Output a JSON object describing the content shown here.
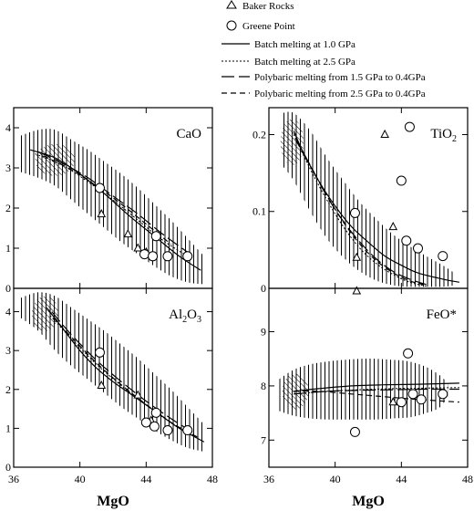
{
  "legend": {
    "placement": "top",
    "entries": [
      {
        "label": "Baker Rocks",
        "kind": "triangle"
      },
      {
        "label": "Greene Point",
        "kind": "circle"
      },
      {
        "label": "Batch melting at 1.0 GPa",
        "kind": "solid"
      },
      {
        "label": "Batch melting at 2.5 GPa",
        "kind": "dotted"
      },
      {
        "label": "Polybaric melting from 1.5 GPa to 0.4GPa",
        "kind": "longdash"
      },
      {
        "label": "Polybaric melting from 2.5 GPa to 0.4GPa",
        "kind": "shortdash"
      }
    ]
  },
  "chart_data": [
    {
      "type": "scatter",
      "id": "cao",
      "title": "CaO",
      "title_sub": "",
      "title_post": "",
      "xlim": [
        36,
        48
      ],
      "ylim": [
        0,
        4.5
      ],
      "xticks": [
        36,
        40,
        44,
        48
      ],
      "yticks": [
        0,
        1,
        2,
        3,
        4
      ],
      "xticklabels": false,
      "xlabel": "",
      "series": [
        {
          "kind": "triangle",
          "points": [
            [
              41.3,
              1.85
            ],
            [
              42.9,
              1.35
            ],
            [
              43.5,
              1.0
            ],
            [
              44.0,
              0.9
            ]
          ]
        },
        {
          "kind": "circle",
          "points": [
            [
              41.2,
              2.5
            ],
            [
              43.9,
              0.85
            ],
            [
              44.4,
              0.8
            ],
            [
              44.6,
              1.3
            ],
            [
              45.3,
              0.8
            ],
            [
              46.5,
              0.8
            ]
          ]
        },
        {
          "kind": "solid",
          "points": [
            [
              37.0,
              3.45
            ],
            [
              38.5,
              3.25
            ],
            [
              40.0,
              2.85
            ],
            [
              41.5,
              2.35
            ],
            [
              43.0,
              1.8
            ],
            [
              44.5,
              1.3
            ],
            [
              46.0,
              0.8
            ],
            [
              47.3,
              0.45
            ]
          ]
        },
        {
          "kind": "dotted",
          "points": [
            [
              37.3,
              3.35
            ],
            [
              39.0,
              3.05
            ],
            [
              40.5,
              2.65
            ],
            [
              42.0,
              2.2
            ],
            [
              43.5,
              1.7
            ],
            [
              45.0,
              1.2
            ],
            [
              46.5,
              0.8
            ]
          ]
        },
        {
          "kind": "longdash",
          "points": [
            [
              37.5,
              3.4
            ],
            [
              39.0,
              3.1
            ],
            [
              40.5,
              2.75
            ],
            [
              42.0,
              2.3
            ],
            [
              43.5,
              1.85
            ],
            [
              45.0,
              1.35
            ],
            [
              46.5,
              0.9
            ]
          ]
        },
        {
          "kind": "shortdash",
          "points": [
            [
              37.8,
              3.3
            ],
            [
              39.5,
              2.95
            ],
            [
              41.0,
              2.55
            ],
            [
              42.5,
              2.1
            ],
            [
              44.0,
              1.6
            ],
            [
              45.5,
              1.1
            ]
          ]
        }
      ],
      "band": [
        [
          36.4,
          3.35,
          3.8,
          2.9
        ],
        [
          37.5,
          3.35,
          3.95,
          2.75
        ],
        [
          38.5,
          3.25,
          3.95,
          2.55
        ],
        [
          39.5,
          3.0,
          3.7,
          2.2
        ],
        [
          40.5,
          2.7,
          3.45,
          1.85
        ],
        [
          41.5,
          2.35,
          3.15,
          1.5
        ],
        [
          42.5,
          2.0,
          2.85,
          1.15
        ],
        [
          43.5,
          1.65,
          2.5,
          0.85
        ],
        [
          44.5,
          1.3,
          2.1,
          0.55
        ],
        [
          45.5,
          0.95,
          1.7,
          0.3
        ],
        [
          46.5,
          0.65,
          1.25,
          0.15
        ],
        [
          47.5,
          0.45,
          0.8,
          0.1
        ]
      ],
      "cross": {
        "cx": 38.5,
        "cy": 3.2,
        "rx": 1.2,
        "ry": 0.4
      }
    },
    {
      "type": "scatter",
      "id": "tio2",
      "title": "TiO",
      "title_sub": "2",
      "title_post": "",
      "xlim": [
        36,
        48
      ],
      "ylim": [
        0,
        0.235
      ],
      "xticks": [
        36,
        40,
        44,
        48
      ],
      "yticks": [
        0,
        0.1,
        0.2
      ],
      "xticklabels": false,
      "xlabel": "",
      "series": [
        {
          "kind": "triangle",
          "points": [
            [
              43.0,
              0.2
            ],
            [
              43.5,
              0.08
            ],
            [
              41.3,
              0.04
            ]
          ]
        },
        {
          "kind": "circle",
          "points": [
            [
              44.5,
              0.21
            ],
            [
              44.0,
              0.14
            ],
            [
              41.2,
              0.098
            ],
            [
              44.3,
              0.062
            ],
            [
              45.0,
              0.052
            ],
            [
              46.5,
              0.042
            ]
          ]
        },
        {
          "kind": "solid",
          "points": [
            [
              37.5,
              0.205
            ],
            [
              38.0,
              0.18
            ],
            [
              39.0,
              0.14
            ],
            [
              40.0,
              0.107
            ],
            [
              41.0,
              0.08
            ],
            [
              42.0,
              0.06
            ],
            [
              43.0,
              0.042
            ],
            [
              44.0,
              0.03
            ],
            [
              45.0,
              0.02
            ],
            [
              46.5,
              0.012
            ],
            [
              47.5,
              0.008
            ]
          ]
        },
        {
          "kind": "dotted",
          "points": [
            [
              37.5,
              0.2
            ],
            [
              38.5,
              0.155
            ],
            [
              39.5,
              0.115
            ],
            [
              40.5,
              0.08
            ],
            [
              41.5,
              0.052
            ],
            [
              42.5,
              0.032
            ],
            [
              43.5,
              0.018
            ],
            [
              44.5,
              0.008
            ],
            [
              45.5,
              0.003
            ]
          ]
        },
        {
          "kind": "longdash",
          "points": [
            [
              37.6,
              0.195
            ],
            [
              38.5,
              0.16
            ],
            [
              39.5,
              0.12
            ],
            [
              40.5,
              0.087
            ],
            [
              41.5,
              0.06
            ],
            [
              42.5,
              0.038
            ],
            [
              43.5,
              0.022
            ],
            [
              44.5,
              0.012
            ],
            [
              45.5,
              0.005
            ]
          ]
        },
        {
          "kind": "shortdash",
          "points": [
            [
              37.7,
              0.19
            ],
            [
              38.6,
              0.155
            ],
            [
              39.6,
              0.117
            ],
            [
              40.6,
              0.083
            ],
            [
              41.6,
              0.055
            ],
            [
              42.6,
              0.034
            ],
            [
              43.6,
              0.019
            ],
            [
              44.6,
              0.009
            ],
            [
              45.6,
              0.004
            ]
          ]
        }
      ],
      "band": [
        [
          36.8,
          0.2,
          0.228,
          0.16
        ],
        [
          37.5,
          0.19,
          0.228,
          0.14
        ],
        [
          38.5,
          0.15,
          0.205,
          0.1
        ],
        [
          39.5,
          0.11,
          0.17,
          0.065
        ],
        [
          40.5,
          0.08,
          0.14,
          0.04
        ],
        [
          41.5,
          0.06,
          0.112,
          0.022
        ],
        [
          42.5,
          0.045,
          0.09,
          0.01
        ],
        [
          43.5,
          0.035,
          0.07,
          0.004
        ],
        [
          44.5,
          0.026,
          0.055,
          0.002
        ],
        [
          45.5,
          0.02,
          0.042,
          0.002
        ],
        [
          46.5,
          0.015,
          0.03,
          0.002
        ],
        [
          47.2,
          0.012,
          0.02,
          0.004
        ]
      ],
      "cross": {
        "cx": 37.4,
        "cy": 0.19,
        "rx": 0.7,
        "ry": 0.03
      }
    },
    {
      "type": "scatter",
      "id": "al2o3",
      "title": "Al",
      "title_sub": "2",
      "title_post": "O",
      "title_sub2": "3",
      "xlim": [
        36,
        48
      ],
      "ylim": [
        0,
        4.6
      ],
      "xticks": [
        36,
        40,
        44,
        48
      ],
      "yticks": [
        0,
        1,
        2,
        3,
        4
      ],
      "xticklabels": true,
      "xlabel": "MgO",
      "series": [
        {
          "kind": "triangle",
          "points": [
            [
              41.3,
              2.1
            ],
            [
              43.5,
              1.85
            ],
            [
              44.3,
              1.2
            ]
          ]
        },
        {
          "kind": "circle",
          "points": [
            [
              41.2,
              2.95
            ],
            [
              44.0,
              1.15
            ],
            [
              44.5,
              1.05
            ],
            [
              44.6,
              1.4
            ],
            [
              45.3,
              0.95
            ],
            [
              46.5,
              0.95
            ]
          ]
        },
        {
          "kind": "solid",
          "points": [
            [
              38.0,
              4.1
            ],
            [
              39.0,
              3.55
            ],
            [
              40.0,
              3.0
            ],
            [
              41.0,
              2.55
            ],
            [
              42.0,
              2.2
            ],
            [
              43.0,
              1.9
            ],
            [
              44.0,
              1.6
            ],
            [
              45.0,
              1.3
            ],
            [
              46.0,
              1.0
            ],
            [
              47.5,
              0.65
            ]
          ]
        },
        {
          "kind": "dotted",
          "points": [
            [
              38.2,
              3.9
            ],
            [
              39.5,
              3.3
            ],
            [
              41.0,
              2.65
            ],
            [
              42.5,
              2.1
            ],
            [
              44.0,
              1.6
            ],
            [
              45.5,
              1.15
            ],
            [
              47.0,
              0.8
            ]
          ]
        },
        {
          "kind": "longdash",
          "points": [
            [
              38.3,
              4.0
            ],
            [
              39.5,
              3.4
            ],
            [
              41.0,
              2.75
            ],
            [
              42.5,
              2.2
            ],
            [
              44.0,
              1.7
            ],
            [
              45.5,
              1.25
            ],
            [
              47.0,
              0.85
            ]
          ]
        },
        {
          "kind": "shortdash",
          "points": [
            [
              38.4,
              3.85
            ],
            [
              39.7,
              3.25
            ],
            [
              41.2,
              2.6
            ],
            [
              42.7,
              2.05
            ],
            [
              44.2,
              1.55
            ],
            [
              45.7,
              1.1
            ],
            [
              47.2,
              0.75
            ]
          ]
        }
      ],
      "band": [
        [
          36.4,
          4.15,
          4.35,
          3.85
        ],
        [
          37.5,
          4.0,
          4.5,
          3.5
        ],
        [
          38.5,
          3.7,
          4.4,
          3.0
        ],
        [
          39.5,
          3.35,
          4.1,
          2.6
        ],
        [
          40.5,
          3.0,
          3.8,
          2.25
        ],
        [
          41.5,
          2.65,
          3.5,
          1.9
        ],
        [
          42.5,
          2.3,
          3.15,
          1.55
        ],
        [
          43.5,
          1.95,
          2.8,
          1.25
        ],
        [
          44.5,
          1.6,
          2.4,
          0.95
        ],
        [
          45.5,
          1.3,
          2.0,
          0.7
        ],
        [
          46.5,
          1.0,
          1.55,
          0.5
        ],
        [
          47.5,
          0.75,
          1.1,
          0.4
        ]
      ],
      "cross": {
        "cx": 37.9,
        "cy": 3.95,
        "rx": 0.8,
        "ry": 0.45
      }
    },
    {
      "type": "scatter",
      "id": "feo",
      "title": "FeO*",
      "title_sub": "",
      "title_post": "",
      "xlim": [
        36,
        48
      ],
      "ylim": [
        6.5,
        9.8
      ],
      "xticks": [
        36,
        40,
        44,
        48
      ],
      "yticks": [
        7,
        8,
        9
      ],
      "xticklabels": true,
      "xlabel": "MgO",
      "series": [
        {
          "kind": "triangle",
          "points": [
            [
              41.3,
              9.75
            ],
            [
              43.5,
              7.7
            ]
          ]
        },
        {
          "kind": "circle",
          "points": [
            [
              44.4,
              8.6
            ],
            [
              41.2,
              7.15
            ],
            [
              44.0,
              7.7
            ],
            [
              44.7,
              7.85
            ],
            [
              45.2,
              7.75
            ],
            [
              46.5,
              7.85
            ]
          ]
        },
        {
          "kind": "solid",
          "points": [
            [
              37.5,
              7.9
            ],
            [
              39.0,
              7.95
            ],
            [
              41.0,
              8.0
            ],
            [
              43.0,
              8.02
            ],
            [
              45.0,
              8.03
            ],
            [
              47.5,
              8.05
            ]
          ]
        },
        {
          "kind": "dotted",
          "points": [
            [
              37.5,
              7.85
            ],
            [
              39.5,
              7.9
            ],
            [
              41.5,
              7.93
            ],
            [
              43.5,
              7.95
            ],
            [
              45.5,
              7.96
            ],
            [
              47.5,
              7.97
            ]
          ]
        },
        {
          "kind": "longdash",
          "points": [
            [
              37.5,
              7.85
            ],
            [
              39.5,
              7.9
            ],
            [
              41.5,
              7.92
            ],
            [
              43.5,
              7.93
            ],
            [
              45.5,
              7.94
            ],
            [
              47.5,
              7.94
            ]
          ]
        },
        {
          "kind": "shortdash",
          "points": [
            [
              37.5,
              7.9
            ],
            [
              39.0,
              7.9
            ],
            [
              41.0,
              7.85
            ],
            [
              43.0,
              7.8
            ],
            [
              45.0,
              7.75
            ],
            [
              47.5,
              7.7
            ]
          ]
        }
      ],
      "band": [
        [
          36.5,
          7.85,
          8.1,
          7.55
        ],
        [
          37.5,
          7.9,
          8.3,
          7.45
        ],
        [
          38.5,
          7.9,
          8.4,
          7.4
        ],
        [
          39.5,
          7.92,
          8.45,
          7.38
        ],
        [
          40.5,
          7.95,
          8.48,
          7.38
        ],
        [
          41.5,
          7.95,
          8.5,
          7.38
        ],
        [
          42.5,
          7.95,
          8.5,
          7.38
        ],
        [
          43.5,
          7.95,
          8.48,
          7.4
        ],
        [
          44.5,
          7.95,
          8.45,
          7.42
        ],
        [
          45.5,
          7.95,
          8.35,
          7.5
        ],
        [
          46.3,
          7.95,
          8.2,
          7.6
        ],
        [
          46.8,
          7.95,
          8.05,
          7.8
        ]
      ],
      "cross": {
        "cx": 37.6,
        "cy": 7.9,
        "rx": 0.8,
        "ry": 0.33
      }
    }
  ]
}
